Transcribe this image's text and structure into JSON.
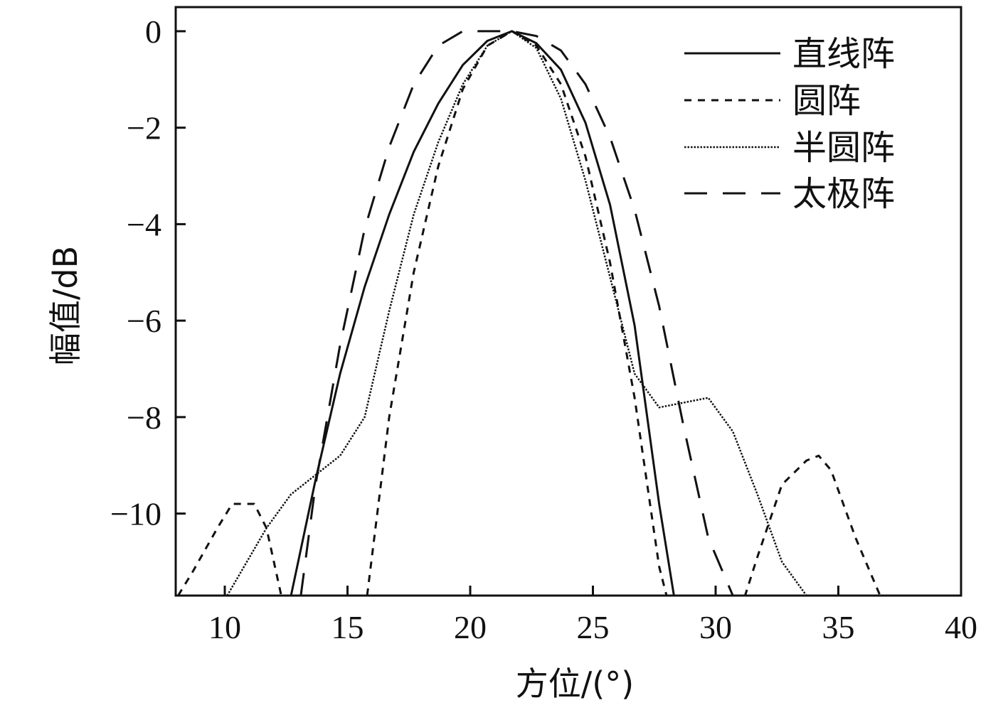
{
  "chart_data": {
    "type": "line",
    "title": "",
    "xlabel": "方位/(°)",
    "ylabel": "幅值/dB",
    "xlim": [
      8,
      40
    ],
    "ylim": [
      -11.7,
      0.5
    ],
    "xticks": [
      10,
      15,
      20,
      25,
      30,
      35,
      40
    ],
    "yticks": [
      0,
      -2,
      -4,
      -6,
      -8,
      -10
    ],
    "xtick_labels": [
      "10",
      "15",
      "20",
      "25",
      "30",
      "35",
      "40"
    ],
    "ytick_labels": [
      "0",
      "−2",
      "−4",
      "−6",
      "−8",
      "−10"
    ],
    "grid": false,
    "legend_position": "top-right",
    "series": [
      {
        "name": "直线阵",
        "dash": "solid",
        "x": [
          12.7,
          13.7,
          14.7,
          15.7,
          16.7,
          17.7,
          18.7,
          19.7,
          20.7,
          21.7,
          22.7,
          23.7,
          24.7,
          25.7,
          26.7,
          27.7,
          28.3
        ],
        "y": [
          -11.7,
          -9.3,
          -7.1,
          -5.3,
          -3.8,
          -2.5,
          -1.5,
          -0.7,
          -0.2,
          0,
          -0.25,
          -0.8,
          -1.9,
          -3.6,
          -6.1,
          -9.8,
          -11.7
        ]
      },
      {
        "name": "圆阵",
        "dash": "short-dash",
        "x": [
          8.1,
          8.7,
          9.7,
          10.3,
          10.7,
          11.2,
          11.7,
          12.3,
          15.8,
          16.7,
          17.7,
          18.7,
          19.7,
          20.7,
          21.7,
          22.7,
          23.7,
          24.7,
          25.7,
          26.7,
          27.7,
          28.0,
          31.2,
          31.7,
          32.7,
          33.7,
          34.2,
          34.7,
          35.7,
          36.7
        ],
        "y": [
          -11.7,
          -11.2,
          -10.3,
          -9.8,
          -9.8,
          -9.8,
          -10.3,
          -11.7,
          -11.7,
          -8.0,
          -5.0,
          -2.8,
          -1.2,
          -0.3,
          0,
          -0.3,
          -1.1,
          -2.6,
          -4.8,
          -7.6,
          -11.1,
          -11.7,
          -11.7,
          -10.9,
          -9.4,
          -8.9,
          -8.8,
          -9.1,
          -10.5,
          -11.7
        ]
      },
      {
        "name": "半圆阵",
        "dash": "dotted",
        "x": [
          10.1,
          11.7,
          12.7,
          13.7,
          14.7,
          15.7,
          16.7,
          17.7,
          18.7,
          19.7,
          20.7,
          21.7,
          22.7,
          23.7,
          24.7,
          25.7,
          26.7,
          27.7,
          28.7,
          29.7,
          30.7,
          31.7,
          32.7,
          33.7
        ],
        "y": [
          -11.7,
          -10.3,
          -9.6,
          -9.2,
          -8.8,
          -8.0,
          -5.8,
          -3.8,
          -2.3,
          -1.1,
          -0.3,
          0,
          -0.35,
          -1.4,
          -3.1,
          -5.1,
          -7.1,
          -7.8,
          -7.7,
          -7.6,
          -8.3,
          -9.6,
          -11.0,
          -11.7
        ]
      },
      {
        "name": "太极阵",
        "dash": "long-dash",
        "x": [
          13.1,
          13.7,
          14.7,
          15.7,
          16.7,
          17.7,
          18.7,
          19.7,
          20.7,
          21.7,
          22.7,
          23.7,
          24.7,
          25.7,
          26.7,
          27.7,
          28.7,
          29.7,
          30.7,
          31.7,
          31.9
        ],
        "y": [
          -11.7,
          -9.4,
          -6.5,
          -4.1,
          -2.4,
          -1.1,
          -0.3,
          0,
          0,
          0,
          -0.1,
          -0.4,
          -1.1,
          -2.2,
          -3.7,
          -5.7,
          -8.2,
          -10.5,
          -11.7,
          -11.7,
          -11.7
        ]
      }
    ]
  }
}
